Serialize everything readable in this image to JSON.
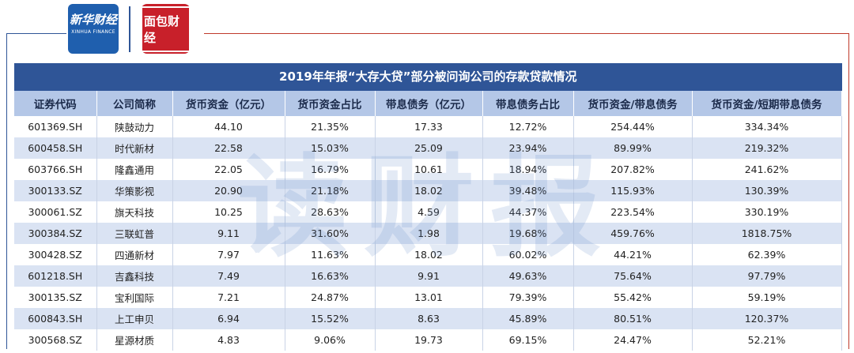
{
  "header": {
    "logo_left": "新华财经",
    "logo_left_en": "XINHUA FINANCE",
    "logo_right": "面包财经"
  },
  "watermark": "读财报",
  "table": {
    "title": "2019年年报“大存大贷”部分被问询公司的存款贷款情况",
    "header": [
      "证券代码",
      "公司简称",
      "货币资金（亿元）",
      "货币资金占比",
      "带息债务（亿元）",
      "带息债务占比",
      "货币资金/带息债务",
      "货币资金/短期带息债务"
    ],
    "rows": [
      [
        "601369.SH",
        "陕鼓动力",
        "44.10",
        "21.35%",
        "17.33",
        "12.72%",
        "254.44%",
        "334.34%"
      ],
      [
        "600458.SH",
        "时代新材",
        "22.58",
        "15.03%",
        "25.09",
        "23.94%",
        "89.99%",
        "219.32%"
      ],
      [
        "603766.SH",
        "隆鑫通用",
        "22.05",
        "16.79%",
        "10.61",
        "18.94%",
        "207.82%",
        "241.62%"
      ],
      [
        "300133.SZ",
        "华策影视",
        "20.90",
        "21.18%",
        "18.02",
        "39.48%",
        "115.93%",
        "130.39%"
      ],
      [
        "300061.SZ",
        "旗天科技",
        "10.25",
        "28.63%",
        "4.59",
        "44.37%",
        "223.54%",
        "330.19%"
      ],
      [
        "300384.SZ",
        "三联虹普",
        "9.11",
        "31.60%",
        "1.98",
        "19.68%",
        "459.76%",
        "1818.75%"
      ],
      [
        "300428.SZ",
        "四通新材",
        "7.97",
        "11.63%",
        "18.02",
        "60.02%",
        "44.21%",
        "62.39%"
      ],
      [
        "601218.SH",
        "吉鑫科技",
        "7.49",
        "16.63%",
        "9.91",
        "49.63%",
        "75.64%",
        "97.79%"
      ],
      [
        "300135.SZ",
        "宝利国际",
        "7.21",
        "24.87%",
        "13.01",
        "79.39%",
        "55.42%",
        "59.19%"
      ],
      [
        "600843.SH",
        "上工申贝",
        "6.94",
        "15.52%",
        "8.63",
        "45.89%",
        "80.51%",
        "120.37%"
      ],
      [
        "300568.SZ",
        "星源材质",
        "4.83",
        "9.06%",
        "19.73",
        "69.15%",
        "24.47%",
        "52.21%"
      ]
    ]
  }
}
